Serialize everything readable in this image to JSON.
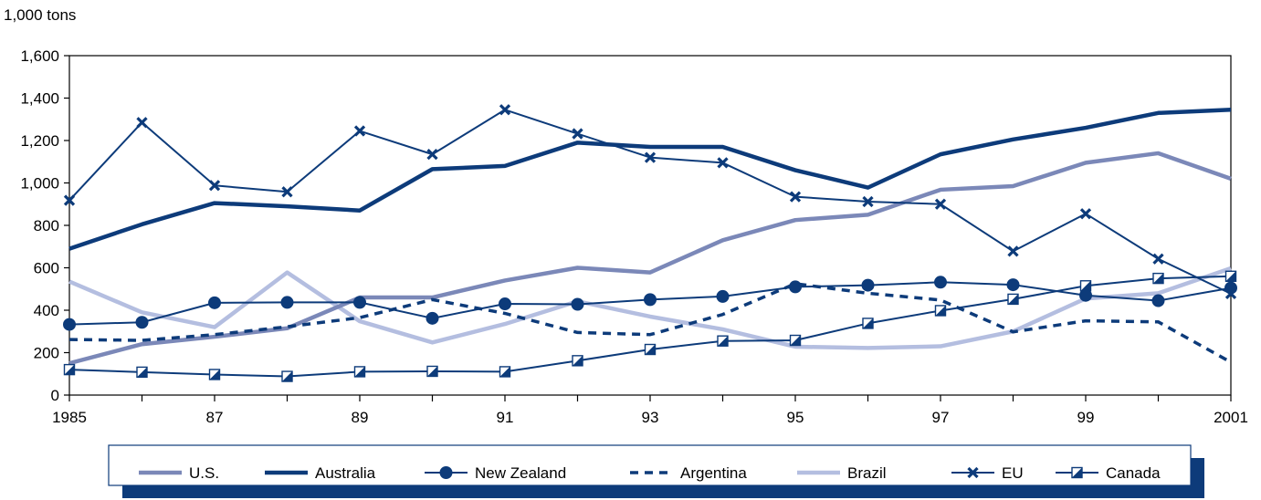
{
  "chart_data": {
    "type": "line",
    "ylabel": "1,000 tons",
    "ylim": [
      0,
      1600
    ],
    "yticks": [
      0,
      200,
      400,
      600,
      800,
      1000,
      1200,
      1400,
      1600
    ],
    "ytick_labels": [
      "0",
      "200",
      "400",
      "600",
      "800",
      "1,000",
      "1,200",
      "1,400",
      "1,600"
    ],
    "xlim": [
      1985,
      2001
    ],
    "x": [
      1985,
      1986,
      1987,
      1988,
      1989,
      1990,
      1991,
      1992,
      1993,
      1994,
      1995,
      1996,
      1997,
      1998,
      1999,
      2000,
      2001
    ],
    "xtick_values": [
      1985,
      1987,
      1989,
      1991,
      1993,
      1995,
      1997,
      1999,
      2001
    ],
    "xtick_labels": [
      "1985",
      "87",
      "89",
      "91",
      "93",
      "95",
      "97",
      "99",
      "2001"
    ],
    "legend_position": "bottom",
    "series": [
      {
        "name": "U.S.",
        "color": "#7b88b8",
        "style": "thick",
        "marker": "none",
        "values": [
          150,
          240,
          275,
          315,
          460,
          460,
          540,
          600,
          578,
          730,
          825,
          850,
          968,
          985,
          1095,
          1140,
          1020
        ]
      },
      {
        "name": "Australia",
        "color": "#0d3b7a",
        "style": "thick",
        "marker": "none",
        "values": [
          690,
          805,
          905,
          890,
          870,
          1065,
          1080,
          1190,
          1170,
          1170,
          1060,
          978,
          1135,
          1205,
          1260,
          1330,
          1345
        ]
      },
      {
        "name": "New Zealand",
        "color": "#0d3b7a",
        "style": "thin",
        "marker": "circle",
        "values": [
          333,
          343,
          435,
          437,
          437,
          362,
          430,
          428,
          450,
          465,
          510,
          518,
          532,
          520,
          470,
          445,
          505
        ]
      },
      {
        "name": "Argentina",
        "color": "#0d3b7a",
        "style": "dashed",
        "marker": "none",
        "values": [
          262,
          258,
          285,
          322,
          365,
          450,
          385,
          295,
          285,
          380,
          525,
          480,
          448,
          298,
          350,
          345,
          155
        ]
      },
      {
        "name": "Brazil",
        "color": "#b4bee0",
        "style": "thick",
        "marker": "none",
        "values": [
          535,
          390,
          320,
          578,
          348,
          248,
          335,
          442,
          370,
          310,
          228,
          222,
          230,
          300,
          455,
          480,
          598
        ]
      },
      {
        "name": "EU",
        "color": "#0d3b7a",
        "style": "thin",
        "marker": "x",
        "values": [
          918,
          1285,
          988,
          958,
          1245,
          1135,
          1345,
          1232,
          1120,
          1095,
          935,
          912,
          900,
          678,
          855,
          642,
          478
        ]
      },
      {
        "name": "Canada",
        "color": "#0d3b7a",
        "style": "thin",
        "marker": "square",
        "values": [
          120,
          108,
          97,
          88,
          110,
          112,
          110,
          162,
          215,
          255,
          258,
          338,
          398,
          452,
          515,
          550,
          560
        ]
      }
    ]
  }
}
